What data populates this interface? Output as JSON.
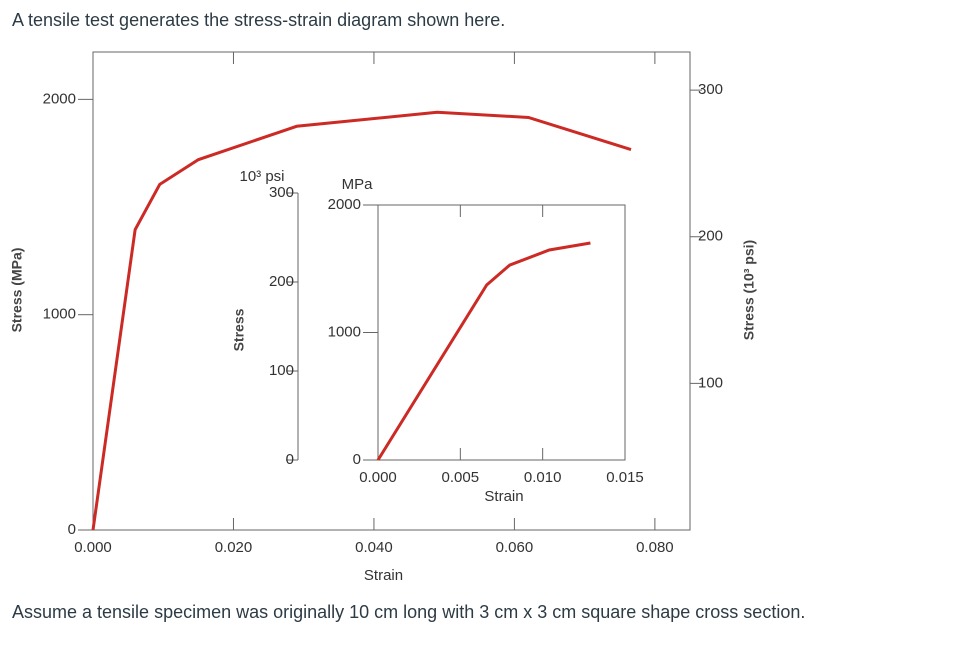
{
  "question": {
    "intro": "A tensile test generates the stress-strain diagram shown here.",
    "note": "Assume a tensile specimen was originally 10 cm long with 3 cm x 3 cm square shape cross section."
  },
  "chart_data": [
    {
      "type": "line",
      "x_label": "Strain",
      "y_label": "Stress (MPa)",
      "y2_label": "Stress (10³ psi)",
      "x": [
        0,
        0.006,
        0.0095,
        0.015,
        0.029,
        0.049,
        0.062,
        0.0766
      ],
      "series": [
        {
          "name": "Stress",
          "color": "#cc2a24",
          "values": [
            0,
            1395,
            1605,
            1720,
            1875,
            1940,
            1916,
            1767
          ]
        }
      ],
      "xlim": [
        0,
        0.085
      ],
      "xticks": [
        {
          "value": 0,
          "label": "0.000"
        },
        {
          "value": 0.02,
          "label": "0.020"
        },
        {
          "value": 0.04,
          "label": "0.040"
        },
        {
          "value": 0.06,
          "label": "0.060"
        },
        {
          "value": 0.08,
          "label": "0.080"
        }
      ],
      "ylim": [
        0,
        2220
      ],
      "yticks": [
        0,
        1000,
        2000
      ],
      "y2lim": [
        0,
        326
      ],
      "y2ticks": [
        100,
        200,
        300
      ],
      "grid": false
    },
    {
      "type": "line",
      "x_label": "Strain",
      "y_label": "MPa",
      "y2_label": "10³ psi",
      "axis_title": "Stress",
      "x": [
        0,
        0.0066,
        0.008,
        0.0104,
        0.0129
      ],
      "series": [
        {
          "name": "Stress",
          "color": "#cc2a24",
          "values": [
            0,
            1373,
            1529,
            1647,
            1702
          ]
        }
      ],
      "xlim": [
        0,
        0.015
      ],
      "xticks": [
        {
          "value": 0,
          "label": "0.000"
        },
        {
          "value": 0.005,
          "label": "0.005"
        },
        {
          "value": 0.01,
          "label": "0.010"
        },
        {
          "value": 0.015,
          "label": "0.015"
        }
      ],
      "ylim": [
        0,
        2000
      ],
      "yticks": [
        0,
        1000,
        2000
      ],
      "y2lim": [
        0,
        300
      ],
      "y2ticks": [
        0,
        100,
        200,
        300
      ],
      "grid": false
    }
  ]
}
